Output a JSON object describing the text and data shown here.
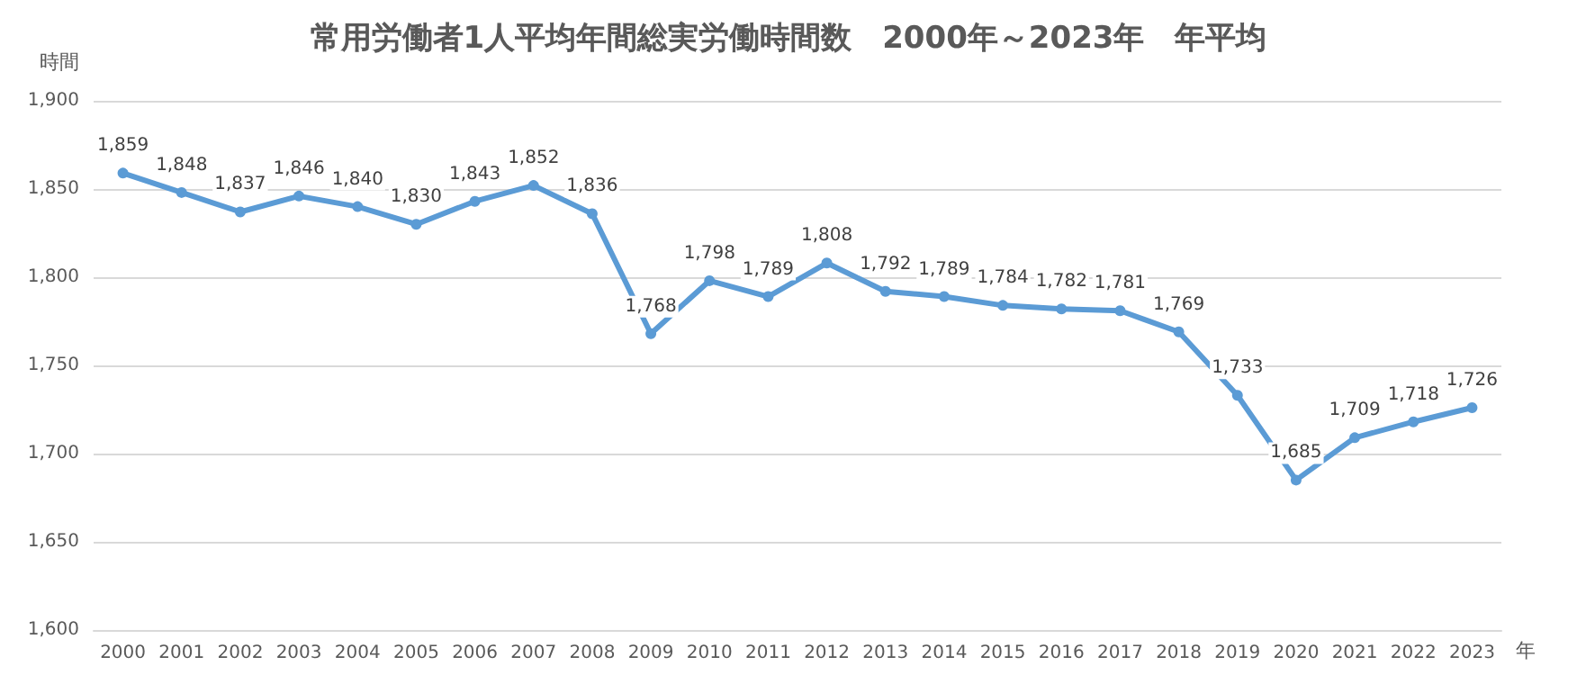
{
  "chart_data": {
    "type": "line",
    "title": "常用労働者1人平均年間総実労働時間数　2000年～2023年　年平均",
    "xlabel": "年",
    "ylabel": "時間",
    "categories": [
      "2000",
      "2001",
      "2002",
      "2003",
      "2004",
      "2005",
      "2006",
      "2007",
      "2008",
      "2009",
      "2010",
      "2011",
      "2012",
      "2013",
      "2014",
      "2015",
      "2016",
      "2017",
      "2018",
      "2019",
      "2020",
      "2021",
      "2022",
      "2023"
    ],
    "series": [
      {
        "color": "#5b9bd5",
        "values": [
          1859,
          1848,
          1837,
          1846,
          1840,
          1830,
          1843,
          1852,
          1836,
          1768,
          1798,
          1789,
          1808,
          1792,
          1789,
          1784,
          1782,
          1781,
          1769,
          1733,
          1685,
          1709,
          1718,
          1726
        ],
        "value_labels": [
          "1,859",
          "1,848",
          "1,837",
          "1,846",
          "1,840",
          "1,830",
          "1,843",
          "1,852",
          "1,836",
          "1,768",
          "1,798",
          "1,789",
          "1,808",
          "1,792",
          "1,789",
          "1,784",
          "1,782",
          "1,781",
          "1,769",
          "1,733",
          "1,685",
          "1,709",
          "1,718",
          "1,726"
        ]
      }
    ],
    "ylim": [
      1600,
      1900
    ],
    "yticks": [
      {
        "value": 1600,
        "label": "1,600"
      },
      {
        "value": 1650,
        "label": "1,650"
      },
      {
        "value": 1700,
        "label": "1,700"
      },
      {
        "value": 1750,
        "label": "1,750"
      },
      {
        "value": 1800,
        "label": "1,800"
      },
      {
        "value": 1850,
        "label": "1,850"
      },
      {
        "value": 1900,
        "label": "1,900"
      }
    ],
    "grid": "y",
    "marker": "circle",
    "line_style": "solid"
  }
}
